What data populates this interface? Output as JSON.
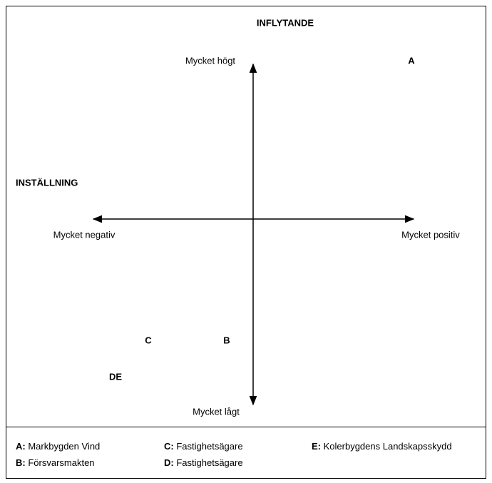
{
  "title": "INFLYTANDE",
  "y_axis": {
    "top": "Mycket högt",
    "bottom": "Mycket lågt"
  },
  "x_axis": {
    "title": "INSTÄLLNING",
    "left": "Mycket negativ",
    "right": "Mycket positiv"
  },
  "points": [
    {
      "label": "A"
    },
    {
      "label": "C"
    },
    {
      "label": "B"
    },
    {
      "label": "DE"
    }
  ],
  "legend": [
    {
      "key": "A:",
      "label": "Markbygden Vind"
    },
    {
      "key": "B:",
      "label": "Försvarsmakten"
    },
    {
      "key": "C:",
      "label": "Fastighetsägare"
    },
    {
      "key": "D:",
      "label": "Fastighetsägare"
    },
    {
      "key": "E:",
      "label": "Kolerbygdens Landskapsskydd"
    }
  ]
}
